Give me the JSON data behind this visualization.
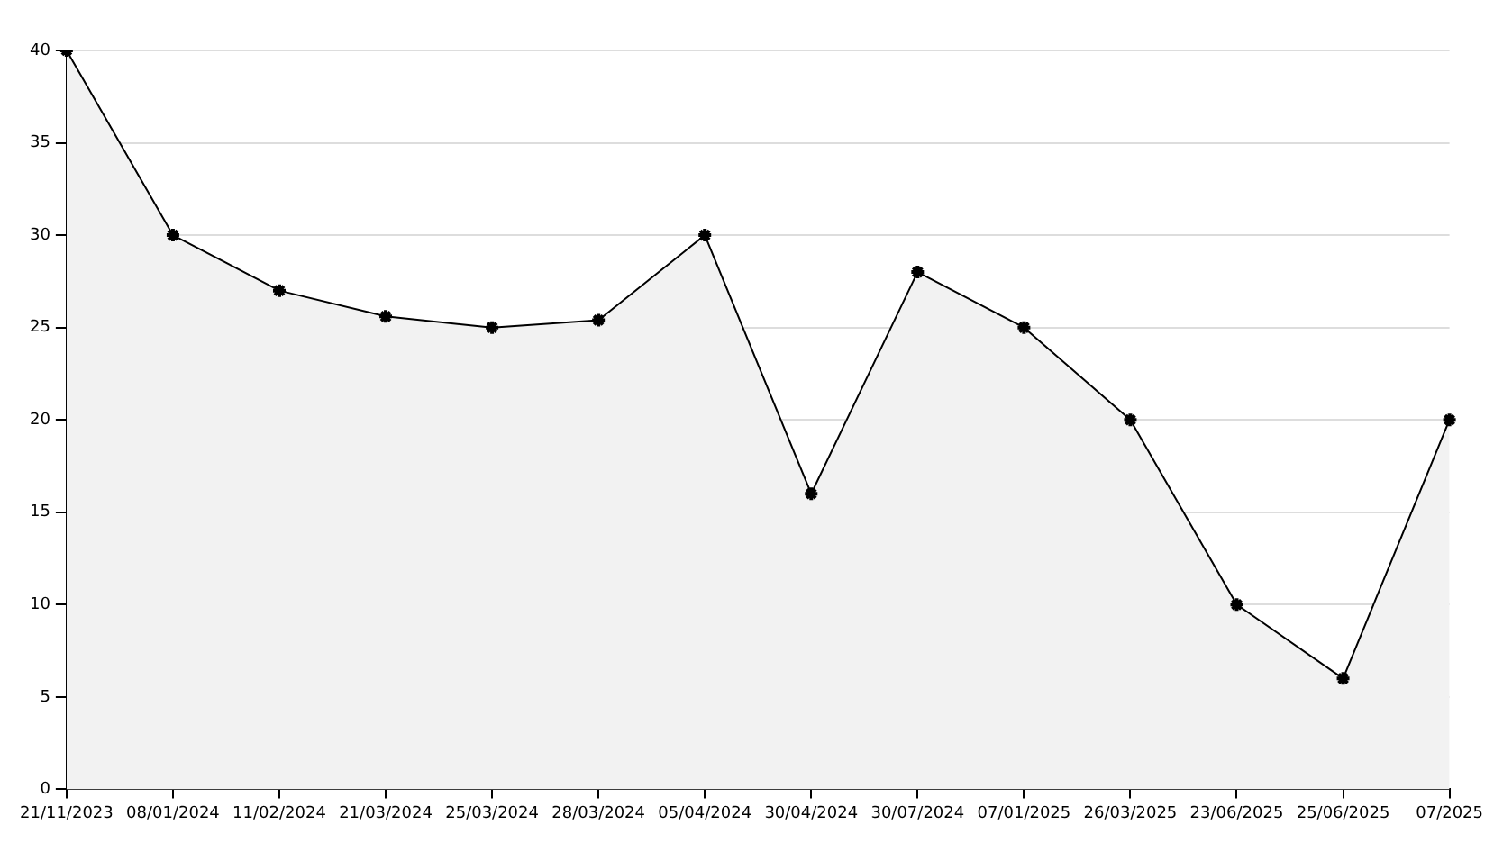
{
  "chart_data": {
    "type": "area",
    "categories": [
      "21/11/2023",
      "08/01/2024",
      "11/02/2024",
      "21/03/2024",
      "25/03/2024",
      "28/03/2024",
      "05/04/2024",
      "30/04/2024",
      "30/07/2024",
      "07/01/2025",
      "26/03/2025",
      "23/06/2025",
      "25/06/2025",
      "07/2025"
    ],
    "series": [
      {
        "color": "#000000",
        "values": [
          40,
          30,
          27,
          25.6,
          25,
          25.4,
          30,
          16,
          28,
          25,
          20,
          10,
          6,
          20
        ]
      }
    ],
    "ylim": [
      0,
      40
    ],
    "yticks": [
      0,
      5,
      10,
      15,
      20,
      25,
      30,
      35,
      40
    ],
    "grid": "y",
    "legend": false,
    "marker": "cross",
    "line_style": "solid"
  }
}
